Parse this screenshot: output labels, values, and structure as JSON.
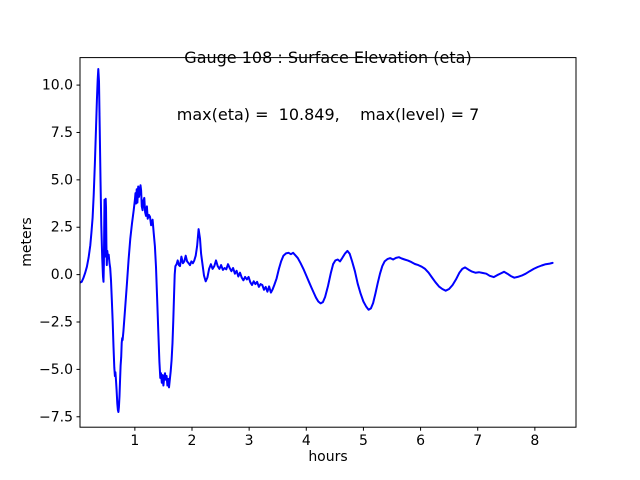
{
  "window": {
    "background": "#ffffff"
  },
  "chart_data": {
    "type": "line",
    "title": "Gauge 108 : Surface Elevation (eta)",
    "subtitle": "max(eta) =  10.849,    max(level) = 7",
    "xlabel": "hours",
    "ylabel": "meters",
    "xlim": [
      0.04,
      8.72
    ],
    "ylim": [
      -8.05,
      11.45
    ],
    "xticks": [
      1,
      2,
      3,
      4,
      5,
      6,
      7,
      8
    ],
    "xtick_labels": [
      "1",
      "2",
      "3",
      "4",
      "5",
      "6",
      "7",
      "8"
    ],
    "yticks": [
      -7.5,
      -5.0,
      -2.5,
      0.0,
      2.5,
      5.0,
      7.5,
      10.0
    ],
    "ytick_labels": [
      "−7.5",
      "−5.0",
      "−2.5",
      "0.0",
      "2.5",
      "5.0",
      "7.5",
      "10.0"
    ],
    "grid": false,
    "legend": null,
    "annotations": {
      "max_eta": 10.849,
      "max_level": 7
    },
    "series": [
      {
        "name": "eta",
        "color": "#0000ff",
        "linewidth": 2,
        "points": [
          [
            0.04,
            -0.42
          ],
          [
            0.07,
            -0.38
          ],
          [
            0.1,
            -0.18
          ],
          [
            0.13,
            0.08
          ],
          [
            0.16,
            0.42
          ],
          [
            0.19,
            0.9
          ],
          [
            0.22,
            1.55
          ],
          [
            0.24,
            2.2
          ],
          [
            0.26,
            3.0
          ],
          [
            0.28,
            4.2
          ],
          [
            0.3,
            5.9
          ],
          [
            0.32,
            7.7
          ],
          [
            0.335,
            9.2
          ],
          [
            0.35,
            10.3
          ],
          [
            0.36,
            10.85
          ],
          [
            0.372,
            10.2
          ],
          [
            0.385,
            7.8
          ],
          [
            0.398,
            5.0
          ],
          [
            0.412,
            2.6
          ],
          [
            0.428,
            0.9
          ],
          [
            0.443,
            -0.1
          ],
          [
            0.452,
            -0.38
          ],
          [
            0.458,
            0.6
          ],
          [
            0.463,
            2.4
          ],
          [
            0.468,
            3.95
          ],
          [
            0.473,
            2.2
          ],
          [
            0.478,
            0.95
          ],
          [
            0.483,
            2.8
          ],
          [
            0.489,
            4.0
          ],
          [
            0.495,
            3.55
          ],
          [
            0.502,
            1.6
          ],
          [
            0.509,
            0.5
          ],
          [
            0.518,
            1.25
          ],
          [
            0.53,
            0.85
          ],
          [
            0.543,
            1.05
          ],
          [
            0.556,
            0.6
          ],
          [
            0.568,
            0.35
          ],
          [
            0.582,
            -0.3
          ],
          [
            0.597,
            -1.3
          ],
          [
            0.612,
            -2.5
          ],
          [
            0.627,
            -3.8
          ],
          [
            0.641,
            -4.9
          ],
          [
            0.651,
            -5.35
          ],
          [
            0.659,
            -5.15
          ],
          [
            0.668,
            -5.5
          ],
          [
            0.68,
            -6.1
          ],
          [
            0.693,
            -6.8
          ],
          [
            0.704,
            -7.15
          ],
          [
            0.712,
            -7.25
          ],
          [
            0.721,
            -7.0
          ],
          [
            0.731,
            -6.4
          ],
          [
            0.741,
            -5.5
          ],
          [
            0.751,
            -4.8
          ],
          [
            0.761,
            -4.35
          ],
          [
            0.77,
            -3.6
          ],
          [
            0.778,
            -3.35
          ],
          [
            0.786,
            -3.45
          ],
          [
            0.8,
            -3.0
          ],
          [
            0.83,
            -1.8
          ],
          [
            0.86,
            -0.5
          ],
          [
            0.89,
            0.8
          ],
          [
            0.92,
            1.9
          ],
          [
            0.95,
            2.7
          ],
          [
            0.98,
            3.4
          ],
          [
            1.0,
            3.95
          ],
          [
            1.012,
            4.3
          ],
          [
            1.022,
            3.75
          ],
          [
            1.032,
            4.5
          ],
          [
            1.045,
            3.8
          ],
          [
            1.058,
            4.65
          ],
          [
            1.072,
            4.1
          ],
          [
            1.085,
            4.35
          ],
          [
            1.098,
            4.72
          ],
          [
            1.11,
            4.45
          ],
          [
            1.122,
            3.6
          ],
          [
            1.135,
            3.4
          ],
          [
            1.15,
            3.9
          ],
          [
            1.165,
            4.05
          ],
          [
            1.18,
            3.3
          ],
          [
            1.195,
            3.1
          ],
          [
            1.21,
            3.6
          ],
          [
            1.225,
            2.95
          ],
          [
            1.245,
            3.15
          ],
          [
            1.265,
            3.05
          ],
          [
            1.285,
            2.6
          ],
          [
            1.31,
            2.9
          ],
          [
            1.33,
            2.2
          ],
          [
            1.35,
            1.5
          ],
          [
            1.37,
            0.4
          ],
          [
            1.39,
            -1.2
          ],
          [
            1.41,
            -3.0
          ],
          [
            1.43,
            -4.6
          ],
          [
            1.445,
            -5.45
          ],
          [
            1.458,
            -5.2
          ],
          [
            1.472,
            -5.7
          ],
          [
            1.486,
            -5.3
          ],
          [
            1.5,
            -5.85
          ],
          [
            1.514,
            -5.45
          ],
          [
            1.528,
            -5.2
          ],
          [
            1.542,
            -5.55
          ],
          [
            1.556,
            -5.35
          ],
          [
            1.57,
            -5.85
          ],
          [
            1.584,
            -5.5
          ],
          [
            1.598,
            -5.95
          ],
          [
            1.612,
            -5.55
          ],
          [
            1.627,
            -5.1
          ],
          [
            1.643,
            -4.5
          ],
          [
            1.659,
            -3.6
          ],
          [
            1.673,
            -2.4
          ],
          [
            1.686,
            -1.0
          ],
          [
            1.698,
            0.0
          ],
          [
            1.71,
            0.45
          ],
          [
            1.73,
            0.55
          ],
          [
            1.75,
            0.75
          ],
          [
            1.77,
            0.5
          ],
          [
            1.79,
            0.45
          ],
          [
            1.815,
            0.95
          ],
          [
            1.84,
            0.6
          ],
          [
            1.865,
            0.7
          ],
          [
            1.89,
            1.0
          ],
          [
            1.915,
            0.7
          ],
          [
            1.94,
            0.6
          ],
          [
            1.965,
            0.5
          ],
          [
            1.99,
            0.7
          ],
          [
            2.015,
            0.6
          ],
          [
            2.04,
            0.75
          ],
          [
            2.065,
            1.0
          ],
          [
            2.09,
            1.5
          ],
          [
            2.115,
            2.4
          ],
          [
            2.14,
            1.9
          ],
          [
            2.16,
            1.1
          ],
          [
            2.185,
            0.5
          ],
          [
            2.21,
            -0.05
          ],
          [
            2.24,
            -0.35
          ],
          [
            2.27,
            -0.15
          ],
          [
            2.3,
            0.3
          ],
          [
            2.33,
            0.55
          ],
          [
            2.36,
            0.3
          ],
          [
            2.39,
            0.45
          ],
          [
            2.42,
            0.75
          ],
          [
            2.45,
            0.45
          ],
          [
            2.48,
            0.3
          ],
          [
            2.51,
            0.5
          ],
          [
            2.54,
            0.25
          ],
          [
            2.57,
            0.35
          ],
          [
            2.6,
            0.28
          ],
          [
            2.63,
            0.55
          ],
          [
            2.66,
            0.35
          ],
          [
            2.69,
            0.18
          ],
          [
            2.72,
            0.35
          ],
          [
            2.75,
            0.05
          ],
          [
            2.78,
            0.2
          ],
          [
            2.81,
            -0.1
          ],
          [
            2.84,
            0.1
          ],
          [
            2.87,
            -0.15
          ],
          [
            2.9,
            -0.3
          ],
          [
            2.93,
            -0.12
          ],
          [
            2.96,
            -0.25
          ],
          [
            2.99,
            -0.12
          ],
          [
            3.02,
            -0.4
          ],
          [
            3.05,
            -0.55
          ],
          [
            3.08,
            -0.35
          ],
          [
            3.11,
            -0.5
          ],
          [
            3.14,
            -0.38
          ],
          [
            3.17,
            -0.65
          ],
          [
            3.2,
            -0.5
          ],
          [
            3.23,
            -0.55
          ],
          [
            3.26,
            -0.8
          ],
          [
            3.29,
            -0.65
          ],
          [
            3.32,
            -0.9
          ],
          [
            3.35,
            -0.62
          ],
          [
            3.38,
            -0.95
          ],
          [
            3.41,
            -0.78
          ],
          [
            3.44,
            -0.55
          ],
          [
            3.48,
            -0.2
          ],
          [
            3.52,
            0.3
          ],
          [
            3.56,
            0.7
          ],
          [
            3.6,
            1.0
          ],
          [
            3.645,
            1.12
          ],
          [
            3.69,
            1.15
          ],
          [
            3.73,
            1.08
          ],
          [
            3.77,
            1.15
          ],
          [
            3.81,
            1.02
          ],
          [
            3.85,
            0.88
          ],
          [
            3.9,
            0.6
          ],
          [
            3.95,
            0.3
          ],
          [
            4.0,
            -0.05
          ],
          [
            4.05,
            -0.4
          ],
          [
            4.09,
            -0.68
          ],
          [
            4.13,
            -0.95
          ],
          [
            4.17,
            -1.22
          ],
          [
            4.21,
            -1.42
          ],
          [
            4.25,
            -1.52
          ],
          [
            4.29,
            -1.45
          ],
          [
            4.33,
            -1.18
          ],
          [
            4.38,
            -0.6
          ],
          [
            4.43,
            0.1
          ],
          [
            4.47,
            0.55
          ],
          [
            4.51,
            0.75
          ],
          [
            4.55,
            0.8
          ],
          [
            4.59,
            0.7
          ],
          [
            4.63,
            0.88
          ],
          [
            4.68,
            1.12
          ],
          [
            4.72,
            1.25
          ],
          [
            4.76,
            1.1
          ],
          [
            4.8,
            0.72
          ],
          [
            4.85,
            0.18
          ],
          [
            4.9,
            -0.48
          ],
          [
            4.95,
            -1.0
          ],
          [
            5.0,
            -1.42
          ],
          [
            5.05,
            -1.7
          ],
          [
            5.09,
            -1.85
          ],
          [
            5.13,
            -1.78
          ],
          [
            5.17,
            -1.5
          ],
          [
            5.21,
            -1.0
          ],
          [
            5.25,
            -0.45
          ],
          [
            5.29,
            0.05
          ],
          [
            5.33,
            0.45
          ],
          [
            5.37,
            0.7
          ],
          [
            5.42,
            0.82
          ],
          [
            5.47,
            0.87
          ],
          [
            5.52,
            0.8
          ],
          [
            5.57,
            0.88
          ],
          [
            5.62,
            0.92
          ],
          [
            5.67,
            0.85
          ],
          [
            5.72,
            0.8
          ],
          [
            5.78,
            0.74
          ],
          [
            5.84,
            0.66
          ],
          [
            5.9,
            0.56
          ],
          [
            5.96,
            0.5
          ],
          [
            6.02,
            0.42
          ],
          [
            6.08,
            0.3
          ],
          [
            6.14,
            0.1
          ],
          [
            6.2,
            -0.15
          ],
          [
            6.26,
            -0.4
          ],
          [
            6.32,
            -0.62
          ],
          [
            6.38,
            -0.76
          ],
          [
            6.44,
            -0.85
          ],
          [
            6.5,
            -0.76
          ],
          [
            6.56,
            -0.55
          ],
          [
            6.62,
            -0.25
          ],
          [
            6.68,
            0.1
          ],
          [
            6.73,
            0.3
          ],
          [
            6.78,
            0.38
          ],
          [
            6.84,
            0.26
          ],
          [
            6.9,
            0.16
          ],
          [
            6.96,
            0.1
          ],
          [
            7.02,
            0.13
          ],
          [
            7.08,
            0.09
          ],
          [
            7.15,
            0.05
          ],
          [
            7.21,
            -0.06
          ],
          [
            7.28,
            -0.13
          ],
          [
            7.34,
            -0.03
          ],
          [
            7.4,
            0.06
          ],
          [
            7.46,
            0.15
          ],
          [
            7.52,
            0.05
          ],
          [
            7.58,
            -0.08
          ],
          [
            7.64,
            -0.16
          ],
          [
            7.7,
            -0.12
          ],
          [
            7.77,
            -0.05
          ],
          [
            7.84,
            0.05
          ],
          [
            7.91,
            0.18
          ],
          [
            7.98,
            0.3
          ],
          [
            8.05,
            0.4
          ],
          [
            8.12,
            0.48
          ],
          [
            8.19,
            0.55
          ],
          [
            8.26,
            0.58
          ],
          [
            8.31,
            0.62
          ]
        ]
      }
    ],
    "colors": {
      "line": "#0000ff",
      "axis": "#000000",
      "background": "#ffffff",
      "text": "#000000"
    }
  }
}
